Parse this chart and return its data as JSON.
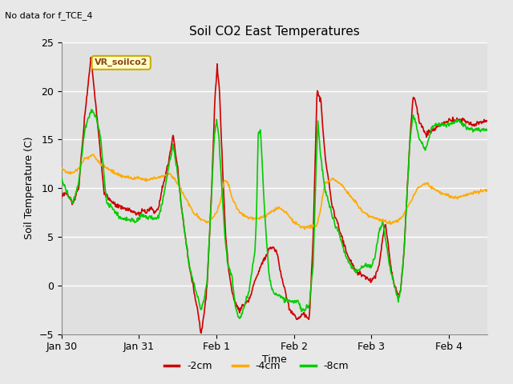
{
  "title": "Soil CO2 East Temperatures",
  "xlabel": "Time",
  "ylabel": "Soil Temperature (C)",
  "no_data_text": "No data for f_TCE_4",
  "legend_label": "VR_soilco2",
  "ylim": [
    -5,
    25
  ],
  "yticks": [
    -5,
    0,
    5,
    10,
    15,
    20,
    25
  ],
  "xtick_labels": [
    "Jan 30",
    "Jan 31",
    "Feb 1",
    "Feb 2",
    "Feb 3",
    "Feb 4"
  ],
  "series_labels": [
    "-2cm",
    "-4cm",
    "-8cm"
  ],
  "series_colors": [
    "#cc0000",
    "#ffaa00",
    "#00cc00"
  ],
  "line_width": 1.2,
  "bg_color": "#e8e8e8",
  "plot_bg_color": "#e0e0e0",
  "grid_color": "#ffffff",
  "n_points": 800
}
